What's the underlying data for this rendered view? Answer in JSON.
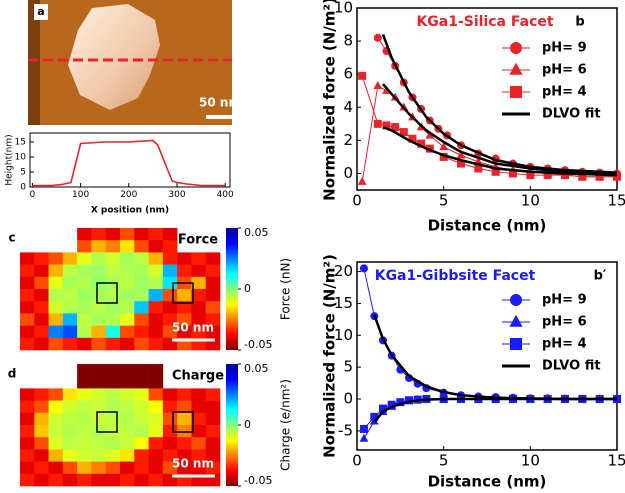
{
  "chart_data": [
    {
      "type": "line",
      "image_label": "a",
      "image_scale_bar": "50 nm",
      "xlabel": "X position (nm)",
      "ylabel": "Height(nm)",
      "xlim": [
        -5,
        410
      ],
      "ylim": [
        0,
        18
      ],
      "xticks": [
        0,
        100,
        200,
        300,
        400
      ],
      "yticks": [
        0,
        5,
        10,
        15
      ],
      "series": [
        {
          "color": "#e8232a",
          "marker": "none",
          "x": [
            0,
            20,
            40,
            60,
            80,
            90,
            100,
            150,
            200,
            250,
            260,
            275,
            290,
            300,
            320,
            350,
            400
          ],
          "values": [
            0.5,
            0.5,
            0.5,
            0.8,
            1.5,
            8,
            14.5,
            15,
            15,
            15.5,
            14,
            8,
            2,
            1.5,
            1,
            0.5,
            0.5
          ]
        }
      ]
    },
    {
      "type": "line",
      "panel_label": "b",
      "title": "KGa1-Silica Facet",
      "title_color": "#e8232a",
      "xlabel": "Distance (nm)",
      "ylabel": "Normalized force (N/m²)",
      "xlim": [
        0,
        15
      ],
      "ylim": [
        -1,
        10
      ],
      "xticks": [
        0,
        5,
        10,
        15
      ],
      "yticks": [
        0,
        2,
        4,
        6,
        8,
        10
      ],
      "legend": "upper right",
      "series": [
        {
          "name": "pH= 9",
          "color": "#e8232a",
          "marker": "circle",
          "x": [
            1.2,
            1.7,
            2.2,
            2.7,
            3.2,
            3.7,
            4.2,
            4.7,
            5.2,
            6,
            7,
            8,
            9,
            10,
            11,
            12,
            13,
            14,
            15
          ],
          "values": [
            8.2,
            7.4,
            6.5,
            5.5,
            4.6,
            3.9,
            3.2,
            2.7,
            2.3,
            1.7,
            1.2,
            0.9,
            0.6,
            0.4,
            0.3,
            0.2,
            0.1,
            0.05,
            0
          ]
        },
        {
          "name": "pH= 6",
          "color": "#e8232a",
          "marker": "triangle",
          "x": [
            0.3,
            1.2,
            1.7,
            2.2,
            2.7,
            3.2,
            3.7,
            4.2,
            5,
            6,
            7,
            8,
            9,
            10,
            11,
            12,
            13,
            14,
            15
          ],
          "values": [
            -0.5,
            5.3,
            5.0,
            4.6,
            4.0,
            3.4,
            2.8,
            2.3,
            1.6,
            1.1,
            0.7,
            0.4,
            0.2,
            0.1,
            0,
            -0.1,
            -0.2,
            -0.2,
            -0.2
          ]
        },
        {
          "name": "pH= 4",
          "color": "#e8232a",
          "marker": "square",
          "x": [
            0.3,
            1.2,
            1.7,
            2.2,
            2.7,
            3.2,
            3.7,
            4.2,
            5,
            6,
            7,
            8,
            9,
            10,
            11,
            12,
            13,
            14,
            15
          ],
          "values": [
            5.9,
            3.0,
            2.9,
            2.8,
            2.5,
            2.1,
            1.8,
            1.5,
            1.0,
            0.6,
            0.3,
            0.1,
            0,
            -0.1,
            -0.1,
            -0.1,
            -0.2,
            -0.2,
            -0.2
          ]
        }
      ],
      "fits": {
        "name": "DLVO fit",
        "color": "#000000",
        "curves": [
          {
            "x": [
              1.5,
              2,
              3,
              4,
              5,
              6,
              8,
              10,
              12,
              15
            ],
            "values": [
              8.4,
              7.0,
              4.9,
              3.4,
              2.4,
              1.7,
              0.8,
              0.4,
              0.2,
              0.05
            ]
          },
          {
            "x": [
              1.5,
              2,
              3,
              4,
              5,
              6,
              8,
              10,
              12,
              15
            ],
            "values": [
              5.4,
              4.8,
              3.6,
              2.6,
              1.9,
              1.3,
              0.6,
              0.3,
              0.1,
              0
            ]
          },
          {
            "x": [
              1.5,
              2,
              3,
              4,
              5,
              6,
              8,
              10,
              12,
              15
            ],
            "values": [
              2.8,
              2.6,
              2.0,
              1.5,
              1.1,
              0.8,
              0.3,
              0.1,
              0,
              -0.1
            ]
          }
        ]
      }
    },
    {
      "type": "line",
      "panel_label": "b′",
      "title": "KGa1-Gibbsite Facet",
      "title_color": "#1a1aff",
      "xlabel": "Distance (nm)",
      "ylabel": "Normalized force (N/m²)",
      "xlim": [
        0,
        15
      ],
      "ylim": [
        -8,
        21.5
      ],
      "xticks": [
        0,
        5,
        10,
        15
      ],
      "yticks": [
        -5,
        0,
        5,
        10,
        15,
        20
      ],
      "legend": "upper right",
      "series": [
        {
          "name": "pH= 9",
          "color": "#1a1aff",
          "marker": "circle",
          "x": [
            0.4,
            1,
            1.5,
            2,
            2.5,
            3,
            3.5,
            4,
            5,
            6,
            7,
            8,
            9,
            10,
            11,
            12,
            13,
            14,
            15
          ],
          "values": [
            20.5,
            13,
            9.2,
            6.8,
            4.6,
            3.3,
            2.4,
            1.7,
            1.0,
            0.6,
            0.4,
            0.3,
            0.2,
            0.1,
            0.1,
            0.05,
            0,
            0,
            0
          ]
        },
        {
          "name": "pH= 6",
          "color": "#1a1aff",
          "marker": "triangle",
          "x": [
            0.4,
            1,
            1.5,
            2,
            2.5,
            3,
            3.5,
            4,
            5,
            6,
            7,
            8,
            9,
            10,
            11,
            12,
            13,
            14,
            15
          ],
          "values": [
            -6.2,
            -3.5,
            -2.0,
            -1.2,
            -0.6,
            -0.3,
            -0.1,
            0,
            0,
            0,
            0,
            0,
            0,
            0,
            0,
            0,
            0,
            0,
            0
          ]
        },
        {
          "name": "pH= 4",
          "color": "#1a1aff",
          "marker": "square",
          "x": [
            0.4,
            1,
            1.5,
            2,
            2.5,
            3,
            3.5,
            4,
            5,
            6,
            7,
            8,
            9,
            10,
            11,
            12,
            13,
            14,
            15
          ],
          "values": [
            -4.7,
            -2.8,
            -1.5,
            -0.9,
            -0.5,
            -0.2,
            -0.1,
            0,
            0,
            0,
            0,
            0,
            0,
            0,
            0,
            0,
            0,
            0,
            0
          ]
        }
      ],
      "fits": {
        "name": "DLVO fit",
        "color": "#000000",
        "curves": [
          {
            "x": [
              1,
              1.5,
              2,
              3,
              4,
              5,
              6,
              8,
              10,
              12,
              15
            ],
            "values": [
              13.2,
              9.4,
              6.9,
              3.6,
              2.0,
              1.1,
              0.6,
              0.2,
              0.1,
              0,
              0
            ]
          },
          {
            "x": [
              1,
              1.5,
              2,
              3,
              4,
              5,
              6,
              8,
              10,
              12,
              15
            ],
            "values": [
              -3.6,
              -2.0,
              -1.2,
              -0.4,
              -0.1,
              0,
              0,
              0,
              0,
              0,
              0
            ]
          }
        ]
      }
    },
    {
      "type": "heatmap",
      "panel_label": "c",
      "label": "Force",
      "colorbar_label": "Force (nN)",
      "scale_bar": "50 nm",
      "colormap": "jet",
      "zlim": [
        -0.05,
        0.05
      ],
      "zticks": [
        0.05,
        0,
        -0.05
      ],
      "values": [
        [
          null,
          null,
          null,
          null,
          0.04,
          0.035,
          0.04,
          0.03,
          0.04,
          0.035,
          0.04,
          null,
          null,
          null
        ],
        [
          null,
          null,
          null,
          null,
          0.03,
          0.02,
          0.025,
          0.015,
          0.03,
          0.04,
          0.035,
          null,
          null,
          null
        ],
        [
          0.04,
          0.035,
          0.03,
          0.02,
          0.01,
          0.005,
          0.008,
          0.004,
          0.006,
          0.02,
          0.035,
          0.04,
          0.035,
          0.04
        ],
        [
          0.035,
          0.04,
          0.02,
          0.006,
          0.004,
          0.003,
          0.006,
          0.005,
          0.004,
          0.008,
          -0.02,
          0.035,
          0.04,
          0.035
        ],
        [
          0.04,
          0.03,
          0.01,
          0.004,
          0.005,
          0.002,
          0.004,
          0.006,
          0.003,
          0.005,
          -0.015,
          0.03,
          0.02,
          0.04
        ],
        [
          0.035,
          0.04,
          0.005,
          0.006,
          0.003,
          0.004,
          0.005,
          0.003,
          0.004,
          -0.02,
          0.03,
          0.02,
          0.035,
          0.04
        ],
        [
          0.04,
          0.035,
          0.008,
          0.005,
          0.004,
          0.006,
          0.003,
          0.005,
          -0.018,
          0.035,
          0.04,
          0.035,
          0.04,
          0.03
        ],
        [
          0.03,
          0.04,
          0.02,
          -0.02,
          0.006,
          0.004,
          0.005,
          0.01,
          0.03,
          0.04,
          0.035,
          0.03,
          0.04,
          0.035
        ],
        [
          0.04,
          0.035,
          -0.025,
          -0.03,
          0.005,
          0.02,
          -0.01,
          0.03,
          0.035,
          0.04,
          0.03,
          0.04,
          0.035,
          0.04
        ],
        [
          0.035,
          0.04,
          0.03,
          0.035,
          0.04,
          0.03,
          0.035,
          0.04,
          0.03,
          0.035,
          0.04,
          0.03,
          0.035,
          0.04
        ]
      ]
    },
    {
      "type": "heatmap",
      "panel_label": "d",
      "label": "Charge",
      "colorbar_label": "Charge (e/nm²)",
      "scale_bar": "50 nm",
      "colormap": "jet",
      "zlim": [
        -0.05,
        0.05
      ],
      "zticks": [
        0.05,
        0,
        -0.05
      ],
      "values": [
        [
          null,
          null,
          null,
          null,
          0.05,
          0.05,
          0.05,
          0.05,
          0.05,
          0.05,
          null,
          null,
          null,
          null
        ],
        [
          null,
          null,
          null,
          null,
          0.05,
          0.05,
          0.05,
          0.05,
          0.05,
          0.05,
          null,
          null,
          null,
          null
        ],
        [
          0.04,
          0.035,
          0.03,
          0.015,
          0.01,
          0.008,
          0.006,
          0.008,
          0.01,
          0.03,
          0.04,
          0.035,
          0.04,
          0.035
        ],
        [
          0.035,
          0.03,
          0.012,
          0.008,
          0.006,
          0.007,
          0.005,
          0.006,
          0.008,
          0.012,
          0.035,
          0.03,
          0.04,
          0.04
        ],
        [
          0.04,
          0.02,
          0.008,
          0.006,
          0.005,
          0.007,
          0.006,
          0.005,
          0.007,
          0.009,
          0.03,
          0.02,
          0.035,
          0.04
        ],
        [
          0.035,
          0.018,
          0.007,
          0.005,
          0.006,
          0.005,
          0.007,
          0.006,
          0.005,
          0.01,
          0.035,
          0.025,
          0.04,
          0.035
        ],
        [
          0.04,
          0.03,
          0.009,
          0.006,
          0.007,
          0.006,
          0.005,
          0.007,
          0.012,
          0.035,
          0.04,
          0.035,
          0.03,
          0.04
        ],
        [
          0.035,
          0.04,
          0.02,
          0.01,
          0.008,
          0.007,
          0.009,
          0.015,
          0.035,
          0.04,
          0.035,
          0.04,
          0.035,
          0.04
        ],
        [
          0.04,
          0.035,
          0.04,
          0.03,
          0.02,
          0.025,
          0.03,
          0.04,
          0.035,
          0.04,
          0.03,
          0.04,
          0.04,
          0.035
        ],
        [
          0.035,
          0.04,
          0.035,
          0.04,
          0.035,
          0.04,
          0.04,
          0.035,
          0.04,
          0.035,
          0.04,
          0.035,
          0.04,
          0.04
        ]
      ]
    }
  ]
}
